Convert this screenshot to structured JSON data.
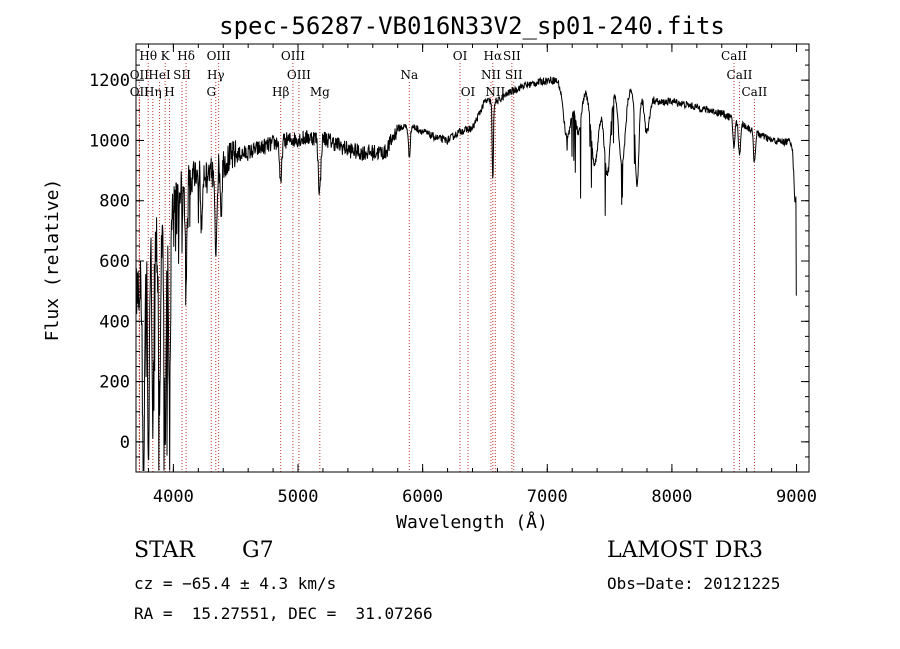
{
  "chart_data": {
    "type": "line",
    "title": "spec-56287-VB016N33V2_sp01-240.fits",
    "xlabel": "Wavelength (Å)",
    "ylabel": "Flux (relative)",
    "xlim": [
      3700,
      9100
    ],
    "ylim": [
      -100,
      1320
    ],
    "xticks": [
      4000,
      5000,
      6000,
      7000,
      8000,
      9000
    ],
    "yticks": [
      0,
      200,
      400,
      600,
      800,
      1000,
      1200
    ],
    "continuum_anchors": {
      "x": [
        3700,
        3760,
        3800,
        3850,
        3900,
        3950,
        4000,
        4050,
        4100,
        4150,
        4200,
        4250,
        4300,
        4350,
        4400,
        4500,
        4600,
        4700,
        4800,
        4900,
        5000,
        5100,
        5200,
        5300,
        5400,
        5500,
        5600,
        5700,
        5750,
        5800,
        5900,
        6000,
        6100,
        6200,
        6300,
        6400,
        6500,
        6600,
        6700,
        6800,
        6900,
        7000,
        7100,
        7200,
        7300,
        7400,
        7500,
        7600,
        7700,
        7800,
        7900,
        8000,
        8100,
        8200,
        8300,
        8400,
        8500,
        8600,
        8700,
        8800,
        8900,
        9000
      ],
      "y": [
        500,
        550,
        600,
        650,
        700,
        740,
        800,
        840,
        870,
        880,
        890,
        900,
        890,
        900,
        930,
        950,
        960,
        975,
        990,
        1000,
        1005,
        1010,
        1010,
        990,
        970,
        960,
        960,
        960,
        1000,
        1040,
        1050,
        1030,
        1010,
        1000,
        1030,
        1040,
        1130,
        1130,
        1160,
        1180,
        1190,
        1200,
        1200,
        1180,
        1180,
        1170,
        1170,
        1175,
        1170,
        1150,
        1125,
        1130,
        1120,
        1110,
        1100,
        1090,
        1070,
        1045,
        1020,
        1000,
        995,
        1000
      ]
    },
    "absorption_features": [
      {
        "x": 3760,
        "depth": 700,
        "width": 8
      },
      {
        "x": 3800,
        "depth": 650,
        "width": 6
      },
      {
        "x": 3835,
        "depth": 600,
        "width": 6
      },
      {
        "x": 3889,
        "depth": 550,
        "width": 8
      },
      {
        "x": 3934,
        "depth": 700,
        "width": 8
      },
      {
        "x": 3969,
        "depth": 650,
        "width": 8
      },
      {
        "x": 4102,
        "depth": 300,
        "width": 8
      },
      {
        "x": 4226,
        "depth": 200,
        "width": 6
      },
      {
        "x": 4340,
        "depth": 260,
        "width": 8
      },
      {
        "x": 4384,
        "depth": 150,
        "width": 6
      },
      {
        "x": 4861,
        "depth": 150,
        "width": 8
      },
      {
        "x": 5173,
        "depth": 180,
        "width": 10
      },
      {
        "x": 5893,
        "depth": 100,
        "width": 8
      },
      {
        "x": 6563,
        "depth": 270,
        "width": 5
      },
      {
        "x": 7160,
        "depth": 180,
        "width": 30
      },
      {
        "x": 7250,
        "depth": 150,
        "width": 25
      },
      {
        "x": 7380,
        "depth": 250,
        "width": 30
      },
      {
        "x": 7480,
        "depth": 280,
        "width": 25
      },
      {
        "x": 7600,
        "depth": 260,
        "width": 25
      },
      {
        "x": 7720,
        "depth": 320,
        "width": 15
      },
      {
        "x": 7800,
        "depth": 120,
        "width": 20
      },
      {
        "x": 8498,
        "depth": 90,
        "width": 8
      },
      {
        "x": 8542,
        "depth": 110,
        "width": 8
      },
      {
        "x": 8662,
        "depth": 100,
        "width": 8
      },
      {
        "x": 8990,
        "depth": 200,
        "width": 12
      }
    ],
    "spectral_lines": [
      {
        "label": "Hθ",
        "x": 3798,
        "row": 0
      },
      {
        "label": "K",
        "x": 3934,
        "row": 0
      },
      {
        "label": "Hδ",
        "x": 4102,
        "row": 0
      },
      {
        "label": "OIII",
        "x": 4363,
        "row": 0
      },
      {
        "label": "OIII",
        "x": 4959,
        "row": 0
      },
      {
        "label": "OI",
        "x": 6300,
        "row": 0
      },
      {
        "label": "Hα",
        "x": 6563,
        "row": 0
      },
      {
        "label": "SII",
        "x": 6716,
        "row": 0
      },
      {
        "label": "CaII",
        "x": 8498,
        "row": 0
      },
      {
        "label": "OII",
        "x": 3727,
        "row": 1
      },
      {
        "label": "HeI",
        "x": 3889,
        "row": 1
      },
      {
        "label": "SII",
        "x": 4069,
        "row": 1
      },
      {
        "label": "Hγ",
        "x": 4340,
        "row": 1
      },
      {
        "label": "OIII",
        "x": 5007,
        "row": 1
      },
      {
        "label": "Na",
        "x": 5893,
        "row": 1
      },
      {
        "label": "NII",
        "x": 6548,
        "row": 1
      },
      {
        "label": "SII",
        "x": 6731,
        "row": 1
      },
      {
        "label": "CaII",
        "x": 8542,
        "row": 1
      },
      {
        "label": "OII",
        "x": 3727,
        "row": 2
      },
      {
        "label": "Hη",
        "x": 3835,
        "row": 2
      },
      {
        "label": "H",
        "x": 3969,
        "row": 2
      },
      {
        "label": "G",
        "x": 4304,
        "row": 2
      },
      {
        "label": "Hβ",
        "x": 4861,
        "row": 2
      },
      {
        "label": "Mg",
        "x": 5175,
        "row": 2
      },
      {
        "label": "OI",
        "x": 6364,
        "row": 2
      },
      {
        "label": "NII",
        "x": 6583,
        "row": 2
      },
      {
        "label": "CaII",
        "x": 8662,
        "row": 2
      }
    ]
  },
  "info": {
    "object_type": "STAR",
    "subclass": "G7",
    "survey": "LAMOST DR3",
    "cz": "cz = −65.4 ± 4.3 km/s",
    "obs_date": "Obs−Date: 20121225",
    "coords": "RA =  15.27551, DEC =  31.07266"
  }
}
